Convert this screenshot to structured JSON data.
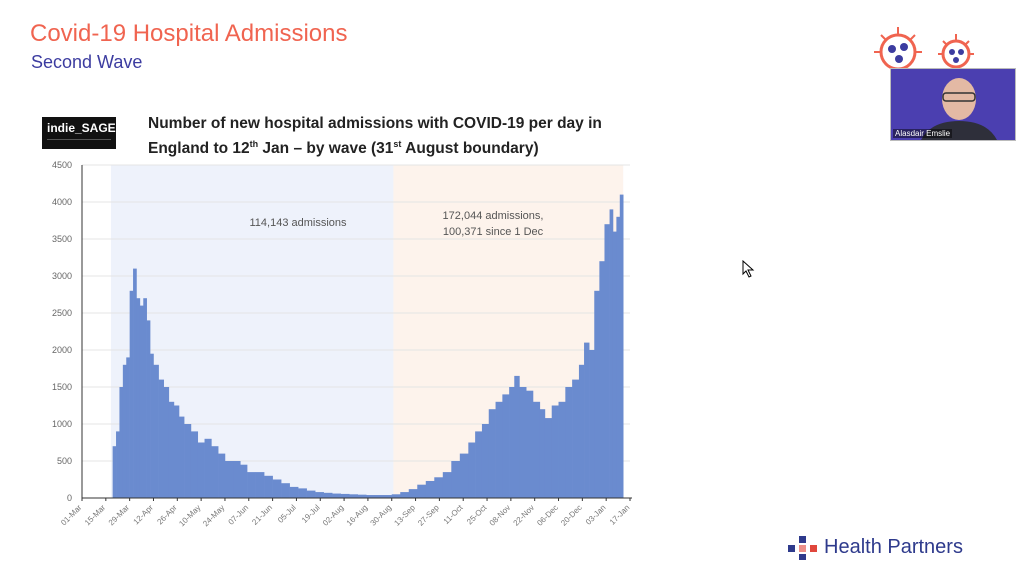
{
  "slide": {
    "title": "Covid-19 Hospital Admissions",
    "subtitle": "Second Wave"
  },
  "logo_badge": "indie_SAGE",
  "brand": {
    "name": "Health Partners",
    "accent": "#f06450",
    "primary": "#2e3a8c"
  },
  "video": {
    "participant_name": "Alasdair Emslie"
  },
  "chart_data": {
    "type": "bar",
    "title_line1": "Number of new hospital admissions with COVID-19 per day in",
    "title_line2_parts": [
      "England to 12",
      "th",
      " Jan – by wave (31",
      "st",
      " August boundary)"
    ],
    "xlabel": "",
    "ylabel": "",
    "ylim": [
      0,
      4500
    ],
    "yticks": [
      0,
      500,
      1000,
      1500,
      2000,
      2500,
      3000,
      3500,
      4000,
      4500
    ],
    "xticks": [
      "01-Mar",
      "15-Mar",
      "29-Mar",
      "12-Apr",
      "26-Apr",
      "10-May",
      "24-May",
      "07-Jun",
      "21-Jun",
      "05-Jul",
      "19-Jul",
      "02-Aug",
      "16-Aug",
      "30-Aug",
      "13-Sep",
      "27-Sep",
      "11-Oct",
      "25-Oct",
      "08-Nov",
      "22-Nov",
      "06-Dec",
      "20-Dec",
      "03-Jan",
      "17-Jan"
    ],
    "grid": true,
    "color": "#6a8bcf",
    "waves": [
      {
        "from": "18-Mar",
        "to": "31-Aug",
        "color": "#eef2fb",
        "annotation": "114,143 admissions"
      },
      {
        "from": "31-Aug",
        "to": "13-Jan",
        "color": "#fdf3ec",
        "annotation": "172,044 admissions,",
        "annotation2": "100,371 since 1 Dec"
      }
    ],
    "points": [
      [
        "19-Mar",
        700
      ],
      [
        "21-Mar",
        900
      ],
      [
        "23-Mar",
        1500
      ],
      [
        "25-Mar",
        1800
      ],
      [
        "27-Mar",
        1900
      ],
      [
        "29-Mar",
        2800
      ],
      [
        "31-Mar",
        3100
      ],
      [
        "02-Apr",
        2700
      ],
      [
        "04-Apr",
        2600
      ],
      [
        "06-Apr",
        2700
      ],
      [
        "08-Apr",
        2400
      ],
      [
        "10-Apr",
        1950
      ],
      [
        "12-Apr",
        1800
      ],
      [
        "15-Apr",
        1600
      ],
      [
        "18-Apr",
        1500
      ],
      [
        "21-Apr",
        1300
      ],
      [
        "24-Apr",
        1250
      ],
      [
        "27-Apr",
        1100
      ],
      [
        "30-Apr",
        1000
      ],
      [
        "04-May",
        900
      ],
      [
        "08-May",
        750
      ],
      [
        "12-May",
        800
      ],
      [
        "16-May",
        700
      ],
      [
        "20-May",
        600
      ],
      [
        "24-May",
        500
      ],
      [
        "29-May",
        500
      ],
      [
        "02-Jun",
        450
      ],
      [
        "06-Jun",
        350
      ],
      [
        "11-Jun",
        350
      ],
      [
        "16-Jun",
        300
      ],
      [
        "21-Jun",
        250
      ],
      [
        "26-Jun",
        200
      ],
      [
        "01-Jul",
        150
      ],
      [
        "06-Jul",
        130
      ],
      [
        "11-Jul",
        100
      ],
      [
        "16-Jul",
        80
      ],
      [
        "21-Jul",
        70
      ],
      [
        "26-Jul",
        60
      ],
      [
        "31-Jul",
        55
      ],
      [
        "05-Aug",
        50
      ],
      [
        "10-Aug",
        45
      ],
      [
        "15-Aug",
        40
      ],
      [
        "20-Aug",
        40
      ],
      [
        "25-Aug",
        40
      ],
      [
        "30-Aug",
        50
      ],
      [
        "04-Sep",
        80
      ],
      [
        "09-Sep",
        120
      ],
      [
        "14-Sep",
        180
      ],
      [
        "19-Sep",
        230
      ],
      [
        "24-Sep",
        280
      ],
      [
        "29-Sep",
        350
      ],
      [
        "04-Oct",
        500
      ],
      [
        "09-Oct",
        600
      ],
      [
        "14-Oct",
        750
      ],
      [
        "18-Oct",
        900
      ],
      [
        "22-Oct",
        1000
      ],
      [
        "26-Oct",
        1200
      ],
      [
        "30-Oct",
        1300
      ],
      [
        "03-Nov",
        1400
      ],
      [
        "07-Nov",
        1500
      ],
      [
        "10-Nov",
        1650
      ],
      [
        "13-Nov",
        1500
      ],
      [
        "17-Nov",
        1450
      ],
      [
        "21-Nov",
        1300
      ],
      [
        "25-Nov",
        1200
      ],
      [
        "28-Nov",
        1080
      ],
      [
        "02-Dec",
        1250
      ],
      [
        "06-Dec",
        1300
      ],
      [
        "10-Dec",
        1500
      ],
      [
        "14-Dec",
        1600
      ],
      [
        "18-Dec",
        1800
      ],
      [
        "21-Dec",
        2100
      ],
      [
        "24-Dec",
        2000
      ],
      [
        "27-Dec",
        2800
      ],
      [
        "30-Dec",
        3200
      ],
      [
        "02-Jan",
        3700
      ],
      [
        "05-Jan",
        3900
      ],
      [
        "07-Jan",
        3600
      ],
      [
        "09-Jan",
        3800
      ],
      [
        "11-Jan",
        4100
      ]
    ]
  }
}
